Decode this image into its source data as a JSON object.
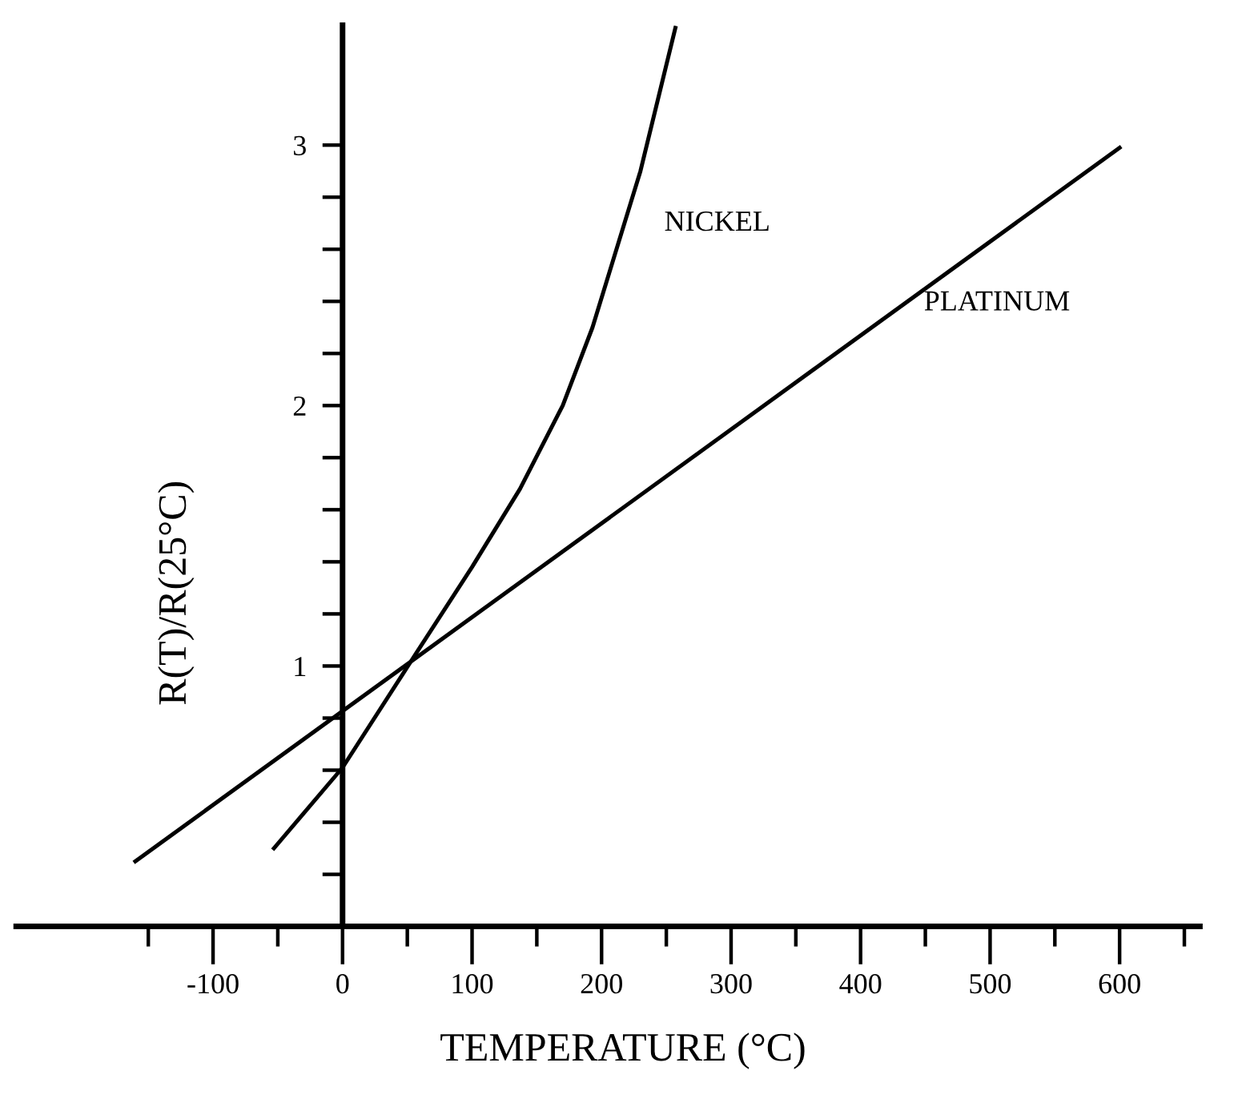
{
  "chart_data": {
    "type": "line",
    "xlabel": "TEMPERATURE (°C)",
    "ylabel": "R(T)/R(25°C)",
    "series": [
      {
        "name": "NICKEL",
        "color": "#000000",
        "x": [
          -53,
          0,
          57,
          100,
          137,
          170,
          193,
          230,
          257
        ],
        "values": [
          0.3,
          0.61,
          1.05,
          1.38,
          1.68,
          2.0,
          2.3,
          2.9,
          3.45
        ]
      },
      {
        "name": "PLATINUM",
        "color": "#000000",
        "x": [
          -160,
          600
        ],
        "values": [
          0.25,
          2.99
        ]
      }
    ],
    "xlim": [
      -252,
      662
    ],
    "ylim": [
      0,
      3.46
    ],
    "xticks": [
      {
        "value": -150,
        "label": null
      },
      -100,
      {
        "value": -50,
        "label": null
      },
      0,
      {
        "value": 50,
        "label": null
      },
      100,
      {
        "value": 150,
        "label": null
      },
      200,
      {
        "value": 250,
        "label": null
      },
      300,
      {
        "value": 350,
        "label": null
      },
      400,
      {
        "value": 450,
        "label": null
      },
      500,
      {
        "value": 550,
        "label": null
      },
      600,
      {
        "value": 650,
        "label": null
      }
    ],
    "yticks": [
      {
        "value": 0.2,
        "label": null
      },
      {
        "value": 0.4,
        "label": null
      },
      {
        "value": 0.6,
        "label": null
      },
      {
        "value": 0.8,
        "label": null
      },
      1,
      {
        "value": 1.2,
        "label": null
      },
      {
        "value": 1.4,
        "label": null
      },
      {
        "value": 1.6,
        "label": null
      },
      {
        "value": 1.8,
        "label": null
      },
      2,
      {
        "value": 2.2,
        "label": null
      },
      {
        "value": 2.4,
        "label": null
      },
      {
        "value": 2.6,
        "label": null
      },
      {
        "value": 2.8,
        "label": null
      },
      3
    ],
    "grid": false,
    "legend": false,
    "marker": "none",
    "line_style": "solid"
  }
}
